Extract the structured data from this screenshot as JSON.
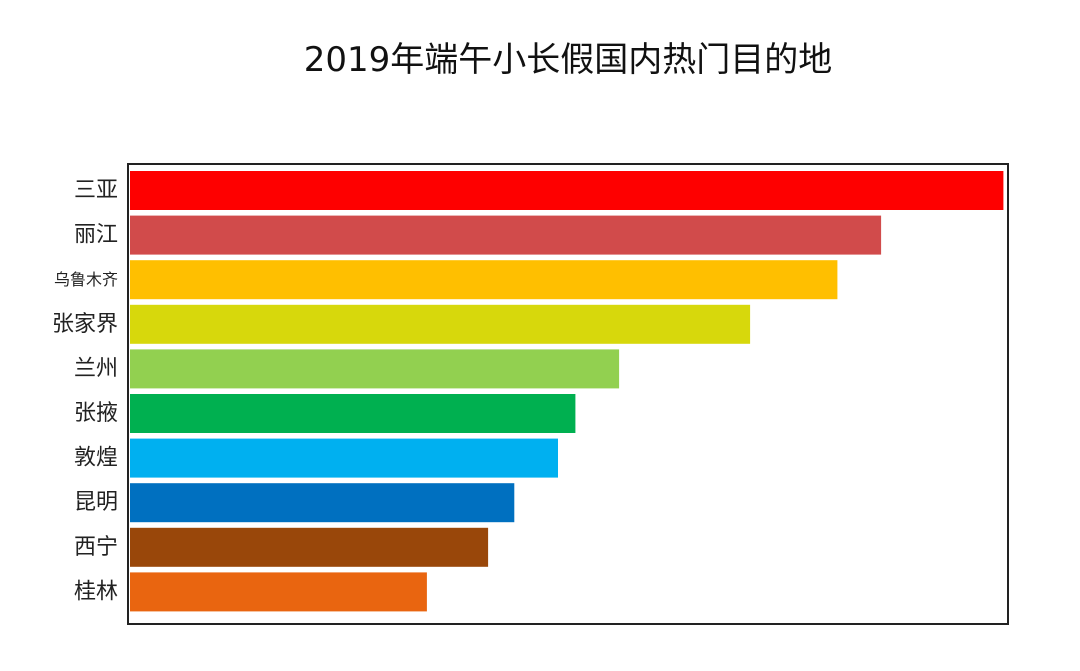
{
  "chart_data": {
    "type": "bar",
    "orientation": "horizontal",
    "title": "2019年端午小长假国内热门目的地",
    "xlabel": "",
    "ylabel": "",
    "grid": false,
    "categories": [
      "三亚",
      "丽江",
      "乌鲁木齐",
      "张家界",
      "兰州",
      "张掖",
      "敦煌",
      "昆明",
      "西宁",
      "桂林"
    ],
    "values": [
      100,
      86,
      81,
      71,
      56,
      51,
      49,
      44,
      41,
      34
    ],
    "xlim": [
      0,
      100.3
    ],
    "colors": [
      "#fe0000",
      "#d14b4b",
      "#ffbf00",
      "#d7d80c",
      "#92d050",
      "#00b050",
      "#00b0f0",
      "#0070c0",
      "#99470a",
      "#e96510"
    ]
  }
}
